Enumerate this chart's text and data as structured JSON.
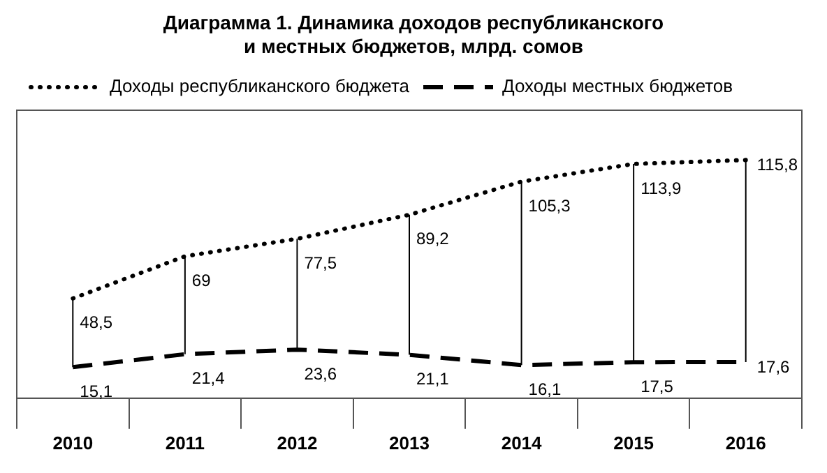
{
  "chart_data": {
    "type": "line",
    "title": "Диаграмма 1. Динамика доходов республиканского\nи местных бюджетов, млрд. сомов",
    "categories": [
      "2010",
      "2011",
      "2012",
      "2013",
      "2014",
      "2015",
      "2016"
    ],
    "series": [
      {
        "name": "Доходы республиканского бюджета",
        "color": "#000000",
        "line_style": "dotted",
        "values": [
          48.5,
          69,
          77.5,
          89.2,
          105.3,
          113.9,
          115.8
        ],
        "value_labels": [
          "48,5",
          "69",
          "77,5",
          "89,2",
          "105,3",
          "113,9",
          "115,8"
        ]
      },
      {
        "name": "Доходы местных бюджетов",
        "color": "#000000",
        "line_style": "dashed",
        "values": [
          15.1,
          21.4,
          23.6,
          21.1,
          16.1,
          17.5,
          17.6
        ],
        "value_labels": [
          "15,1",
          "21,4",
          "23,6",
          "21,1",
          "16,1",
          "17,5",
          "17,6"
        ]
      }
    ],
    "legend": "top left",
    "grid": "x",
    "marker": "none"
  }
}
